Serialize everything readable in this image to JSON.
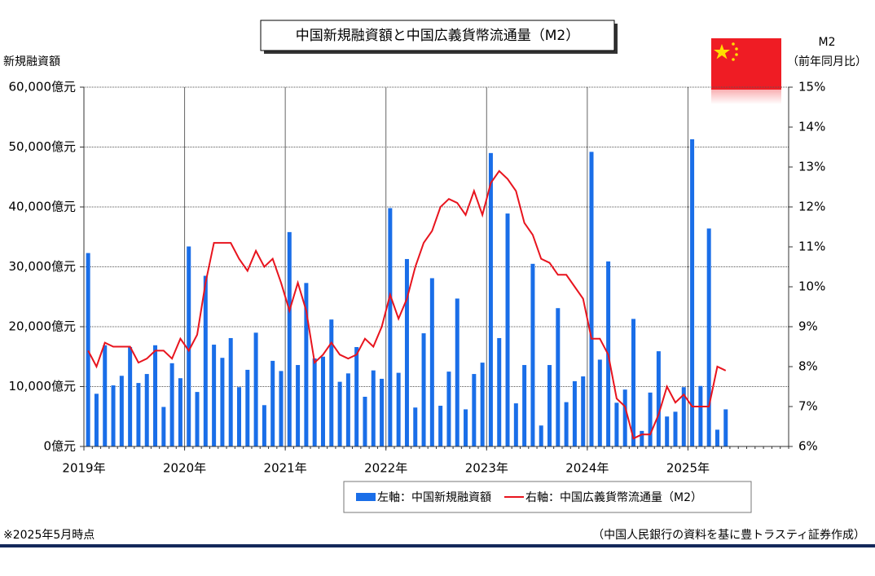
{
  "chart_data": {
    "type": "bar",
    "title": "中国新規融資額と中国広義貨幣流通量（M2）",
    "y_label": "新規融資額",
    "y2_label_top": "M2",
    "y2_label": "（前年同月比）",
    "categories": [
      "2019年",
      null,
      null,
      null,
      null,
      null,
      null,
      null,
      null,
      null,
      null,
      null,
      "2020年",
      null,
      null,
      null,
      null,
      null,
      null,
      null,
      null,
      null,
      null,
      null,
      "2021年",
      null,
      null,
      null,
      null,
      null,
      null,
      null,
      null,
      null,
      null,
      null,
      "2022年",
      null,
      null,
      null,
      null,
      null,
      null,
      null,
      null,
      null,
      null,
      null,
      "2023年",
      null,
      null,
      null,
      null,
      null,
      null,
      null,
      null,
      null,
      null,
      null,
      "2024年",
      null,
      null,
      null,
      null,
      null,
      null,
      null,
      null,
      null,
      null,
      null,
      "2025年",
      null,
      null,
      null,
      null,
      null,
      null,
      null,
      null,
      null,
      null,
      null
    ],
    "series": [
      {
        "name": "左軸：中国新規融資額",
        "type": "bar",
        "axis": "y",
        "color": "#1a6ee8",
        "values": [
          32300,
          8800,
          16900,
          10200,
          11800,
          16600,
          10600,
          12100,
          16900,
          6600,
          13900,
          11400,
          33400,
          9100,
          28500,
          17000,
          14800,
          18100,
          9900,
          12800,
          19000,
          6900,
          14300,
          12600,
          35800,
          13600,
          27300,
          14700,
          15000,
          21200,
          10800,
          12200,
          16600,
          8300,
          12700,
          11300,
          39800,
          12300,
          31300,
          6500,
          18900,
          28100,
          6800,
          12500,
          24700,
          6200,
          12100,
          14000,
          49000,
          18100,
          38900,
          7200,
          13600,
          30500,
          3500,
          13600,
          23100,
          7400,
          10900,
          11700,
          49200,
          14500,
          30900,
          7300,
          9500,
          21300,
          2600,
          9000,
          15900,
          5000,
          5800,
          9900,
          51300,
          10100,
          36400,
          2800,
          6200,
          null,
          null,
          null,
          null,
          null,
          null,
          null
        ]
      },
      {
        "name": "右軸：中国広義貨幣流通量（M2）",
        "type": "line",
        "axis": "y2",
        "color": "#e8141e",
        "values": [
          8.4,
          8.0,
          8.6,
          8.5,
          8.5,
          8.5,
          8.1,
          8.2,
          8.4,
          8.4,
          8.2,
          8.7,
          8.4,
          8.8,
          10.1,
          11.1,
          11.1,
          11.1,
          10.7,
          10.4,
          10.9,
          10.5,
          10.7,
          10.1,
          9.4,
          10.1,
          9.4,
          8.1,
          8.3,
          8.6,
          8.3,
          8.2,
          8.3,
          8.7,
          8.5,
          9.0,
          9.8,
          9.2,
          9.7,
          10.5,
          11.1,
          11.4,
          12.0,
          12.2,
          12.1,
          11.8,
          12.4,
          11.8,
          12.6,
          12.9,
          12.7,
          12.4,
          11.6,
          11.3,
          10.7,
          10.6,
          10.3,
          10.3,
          10.0,
          9.7,
          8.7,
          8.7,
          8.3,
          7.2,
          7.0,
          6.2,
          6.3,
          6.3,
          6.8,
          7.5,
          7.1,
          7.3,
          7.0,
          7.0,
          7.0,
          8.0,
          7.9,
          null,
          null,
          null,
          null,
          null,
          null,
          null
        ]
      }
    ],
    "ylim": [
      0,
      60000
    ],
    "yticks": [
      {
        "value": 0,
        "label": "0億元"
      },
      {
        "value": 10000,
        "label": "10,000億元"
      },
      {
        "value": 20000,
        "label": "20,000億元"
      },
      {
        "value": 30000,
        "label": "30,000億元"
      },
      {
        "value": 40000,
        "label": "40,000億元"
      },
      {
        "value": 50000,
        "label": "50,000億元"
      },
      {
        "value": 60000,
        "label": "60,000億元"
      }
    ],
    "y2lim": [
      6,
      15
    ],
    "y2ticks": [
      {
        "value": 6,
        "label": "6%"
      },
      {
        "value": 7,
        "label": "7%"
      },
      {
        "value": 8,
        "label": "8%"
      },
      {
        "value": 9,
        "label": "9%"
      },
      {
        "value": 10,
        "label": "10%"
      },
      {
        "value": 11,
        "label": "11%"
      },
      {
        "value": 12,
        "label": "12%"
      },
      {
        "value": 13,
        "label": "13%"
      },
      {
        "value": 14,
        "label": "14%"
      },
      {
        "value": 15,
        "label": "15%"
      }
    ],
    "grid": true,
    "legend": "bottom",
    "note": "※2025年5月時点",
    "source": "（中国人民銀行の資料を基に豊トラスティ証券作成）"
  }
}
